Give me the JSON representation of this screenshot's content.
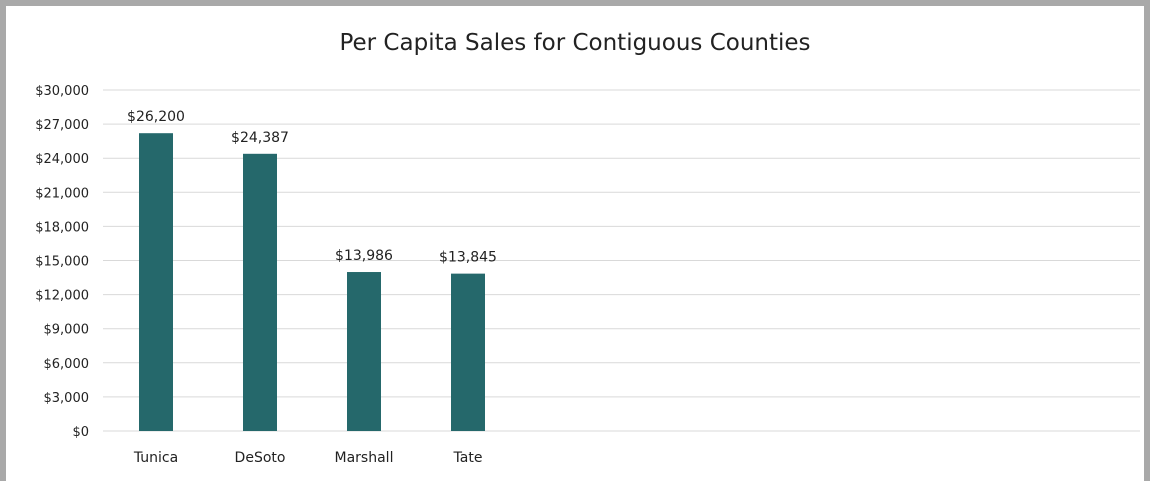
{
  "chart_data": {
    "type": "bar",
    "title": "Per Capita Sales for Contiguous Counties",
    "categories": [
      "Tunica",
      "DeSoto",
      "Marshall",
      "Tate"
    ],
    "values": [
      26200,
      24387,
      13986,
      13845
    ],
    "data_labels": [
      "$26,200",
      "$24,387",
      "$13,986",
      "$13,845"
    ],
    "y_ticks": [
      "$0",
      "$3,000",
      "$6,000",
      "$9,000",
      "$12,000",
      "$15,000",
      "$18,000",
      "$21,000",
      "$24,000",
      "$27,000",
      "$30,000"
    ],
    "ylim": [
      0,
      30000
    ],
    "ytick_step": 3000,
    "grid": true,
    "legend": "none",
    "bar_color": "#25686b",
    "grid_color": "#d9d9d9"
  }
}
